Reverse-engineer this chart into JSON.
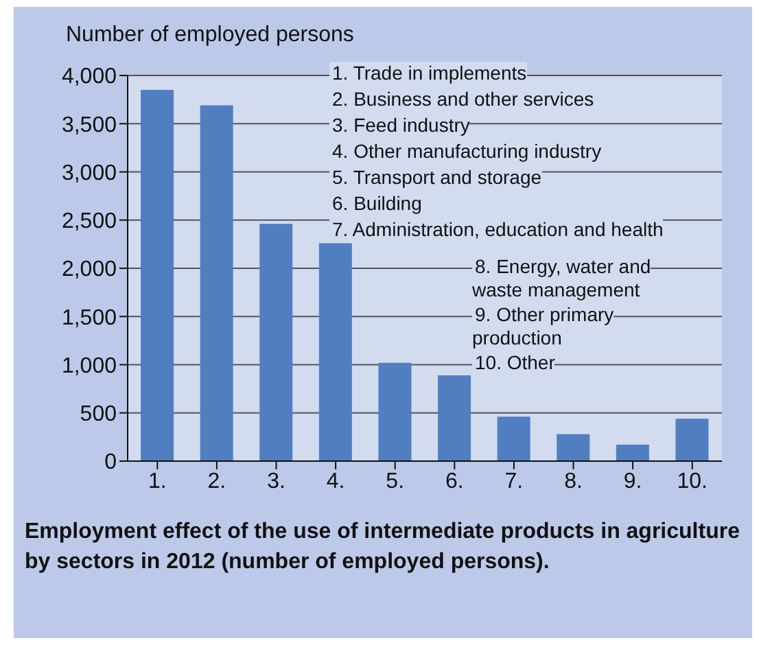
{
  "chart_data": {
    "type": "bar",
    "title": "Employment effect of the use of intermediate products in agriculture by sectors in 2012 (number of employed persons).",
    "ylabel": "Number of employed persons",
    "categories": [
      "1.",
      "2.",
      "3.",
      "4.",
      "5.",
      "6.",
      "7.",
      "8.",
      "9.",
      "10."
    ],
    "values": [
      3850,
      3690,
      2460,
      2260,
      1020,
      890,
      460,
      280,
      170,
      440
    ],
    "color": "#4f7fc1",
    "ylim": [
      0,
      4000
    ],
    "yticks": [
      {
        "value": 0,
        "label": "0"
      },
      {
        "value": 500,
        "label": "500"
      },
      {
        "value": 1000,
        "label": "1,000"
      },
      {
        "value": 1500,
        "label": "1,500"
      },
      {
        "value": 2000,
        "label": "2,000"
      },
      {
        "value": 2500,
        "label": "2,500"
      },
      {
        "value": 3000,
        "label": "3,000"
      },
      {
        "value": 3500,
        "label": "3,500"
      },
      {
        "value": 4000,
        "label": "4,000"
      }
    ],
    "grid": "y",
    "annotations": [
      "1. Trade in implements",
      "2. Business and other services",
      "3. Feed industry",
      "4. Other manufacturing industry",
      "5. Transport and storage",
      "6. Building",
      "7. Administration, education and health",
      "8. Energy, water and waste management",
      "9. Other primary production",
      "10. Other"
    ]
  }
}
